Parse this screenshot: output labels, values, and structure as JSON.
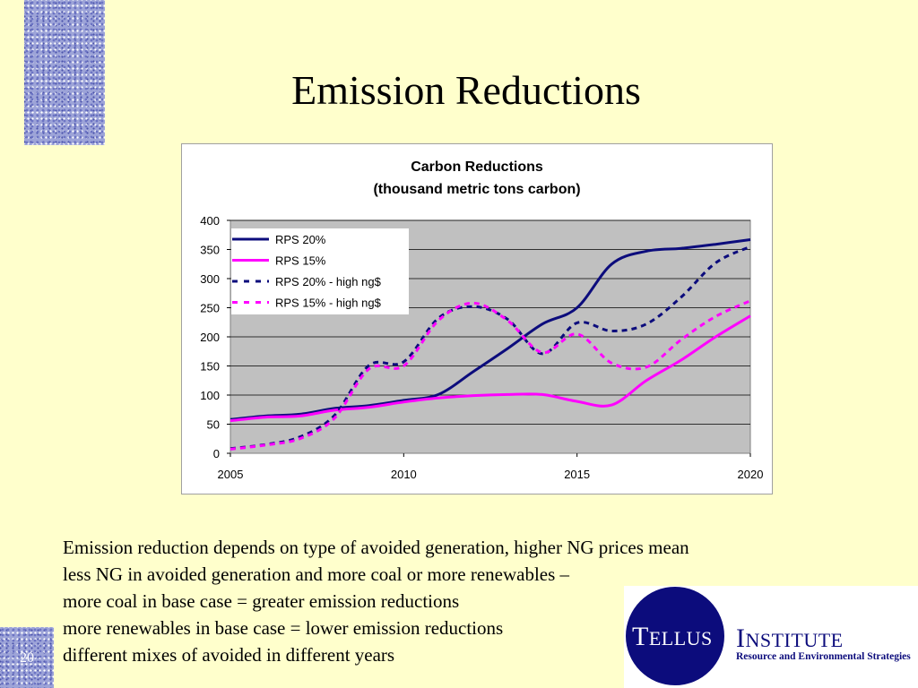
{
  "slide": {
    "title": "Emission Reductions",
    "number": "20"
  },
  "body_lines": [
    "Emission reduction depends on type of avoided generation, higher NG prices mean",
    "less NG in avoided generation and more coal or more renewables –",
    "more coal in base case = greater emission reductions",
    "more renewables in base case = lower emission reductions",
    "different mixes of avoided in different years"
  ],
  "logo": {
    "tellus": "Tellus",
    "institute": "Institute",
    "tagline": "Resource and Environmental Strategies"
  },
  "colors": {
    "background": "#ffffcc",
    "plot_area": "#c0c0c0",
    "navy": "#0c0c7c",
    "magenta": "#ff00ff"
  },
  "chart_data": {
    "type": "line",
    "title_line1": "Carbon Reductions",
    "title_line2": "(thousand metric tons carbon)",
    "xlim": [
      2005,
      2020
    ],
    "ylim": [
      0,
      400
    ],
    "x_ticks": [
      2005,
      2010,
      2015,
      2020
    ],
    "y_ticks": [
      0,
      50,
      100,
      150,
      200,
      250,
      300,
      350,
      400
    ],
    "grid": true,
    "legend_position": "top-left",
    "series": [
      {
        "name": "RPS 20%",
        "color": "#0c0c7c",
        "dashed": false,
        "x": [
          2005,
          2006,
          2007,
          2008,
          2009,
          2010,
          2011,
          2012,
          2013,
          2014,
          2015,
          2016,
          2017,
          2018,
          2019,
          2020
        ],
        "y": [
          58,
          64,
          67,
          77,
          82,
          91,
          101,
          140,
          180,
          222,
          250,
          325,
          347,
          352,
          359,
          367
        ]
      },
      {
        "name": "RPS 15%",
        "color": "#ff00ff",
        "dashed": false,
        "x": [
          2005,
          2006,
          2007,
          2008,
          2009,
          2010,
          2011,
          2012,
          2013,
          2014,
          2015,
          2016,
          2017,
          2018,
          2019,
          2020
        ],
        "y": [
          56,
          62,
          64,
          74,
          79,
          88,
          95,
          99,
          101,
          101,
          89,
          83,
          125,
          160,
          200,
          236
        ]
      },
      {
        "name": "RPS 20% - high ng$",
        "color": "#0c0c7c",
        "dashed": true,
        "x": [
          2005,
          2006,
          2007,
          2008,
          2009,
          2010,
          2011,
          2012,
          2013,
          2014,
          2015,
          2016,
          2017,
          2018,
          2019,
          2020
        ],
        "y": [
          8,
          15,
          28,
          65,
          151,
          157,
          232,
          252,
          230,
          171,
          224,
          210,
          222,
          268,
          327,
          355
        ]
      },
      {
        "name": "RPS 15% - high ng$",
        "color": "#ff00ff",
        "dashed": true,
        "x": [
          2005,
          2006,
          2007,
          2008,
          2009,
          2010,
          2011,
          2012,
          2013,
          2014,
          2015,
          2016,
          2017,
          2018,
          2019,
          2020
        ],
        "y": [
          7,
          14,
          25,
          60,
          145,
          150,
          228,
          258,
          228,
          173,
          205,
          155,
          148,
          195,
          235,
          262
        ]
      }
    ]
  }
}
